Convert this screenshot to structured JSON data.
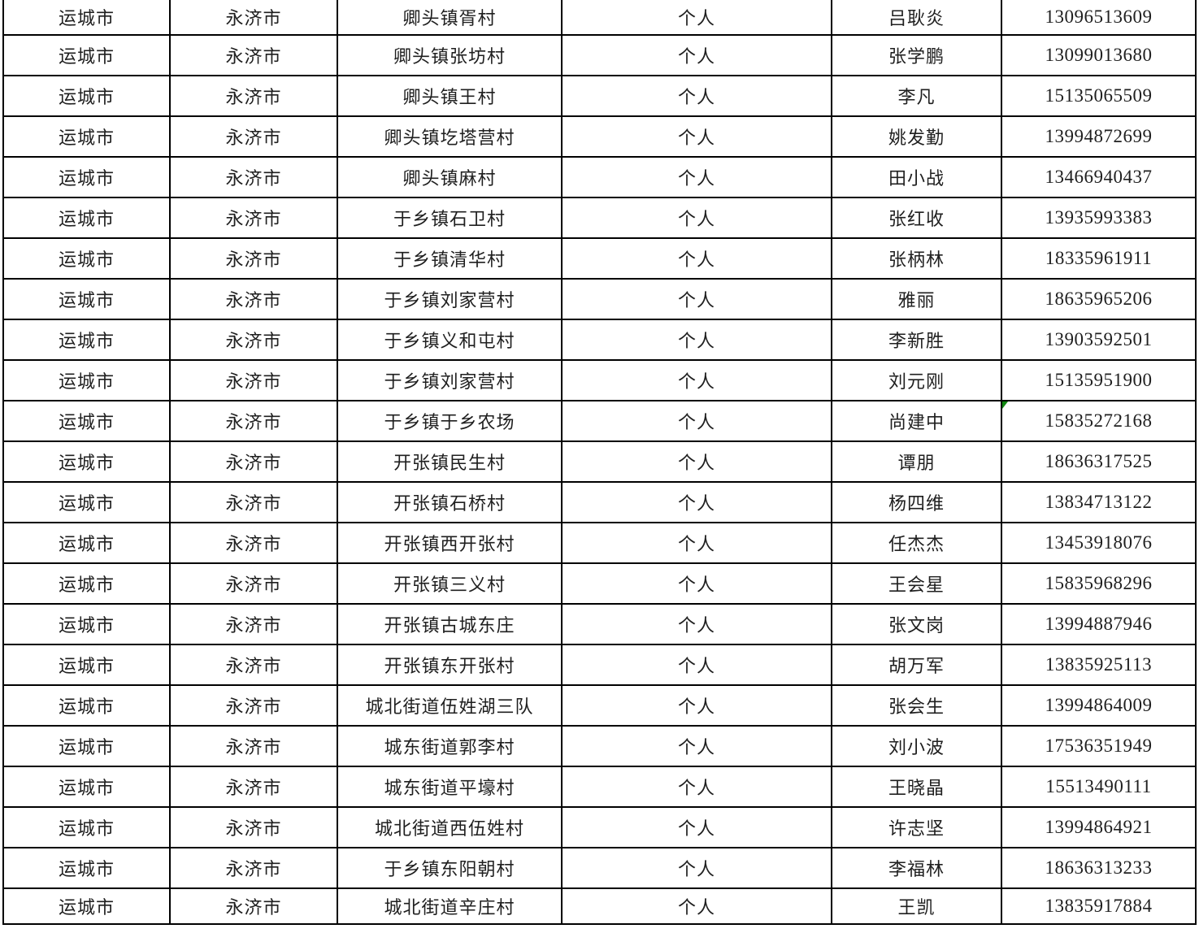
{
  "table": {
    "rows": [
      {
        "city": "运城市",
        "county": "永济市",
        "village": "卿头镇胥村",
        "type": "个人",
        "name": "吕耿炎",
        "phone": "13096513609"
      },
      {
        "city": "运城市",
        "county": "永济市",
        "village": "卿头镇张坊村",
        "type": "个人",
        "name": "张学鹏",
        "phone": "13099013680"
      },
      {
        "city": "运城市",
        "county": "永济市",
        "village": "卿头镇王村",
        "type": "个人",
        "name": "李凡",
        "phone": "15135065509"
      },
      {
        "city": "运城市",
        "county": "永济市",
        "village": "卿头镇圪塔营村",
        "type": "个人",
        "name": "姚发勤",
        "phone": "13994872699"
      },
      {
        "city": "运城市",
        "county": "永济市",
        "village": "卿头镇麻村",
        "type": "个人",
        "name": "田小战",
        "phone": "13466940437"
      },
      {
        "city": "运城市",
        "county": "永济市",
        "village": "于乡镇石卫村",
        "type": "个人",
        "name": "张红收",
        "phone": "13935993383"
      },
      {
        "city": "运城市",
        "county": "永济市",
        "village": "于乡镇清华村",
        "type": "个人",
        "name": "张柄林",
        "phone": "18335961911"
      },
      {
        "city": "运城市",
        "county": "永济市",
        "village": "于乡镇刘家营村",
        "type": "个人",
        "name": "雅丽",
        "phone": "18635965206"
      },
      {
        "city": "运城市",
        "county": "永济市",
        "village": "于乡镇义和屯村",
        "type": "个人",
        "name": "李新胜",
        "phone": "13903592501"
      },
      {
        "city": "运城市",
        "county": "永济市",
        "village": "于乡镇刘家营村",
        "type": "个人",
        "name": "刘元刚",
        "phone": "15135951900"
      },
      {
        "city": "运城市",
        "county": "永济市",
        "village": "于乡镇于乡农场",
        "type": "个人",
        "name": "尚建中",
        "phone": "15835272168"
      },
      {
        "city": "运城市",
        "county": "永济市",
        "village": "开张镇民生村",
        "type": "个人",
        "name": "谭朋",
        "phone": "18636317525"
      },
      {
        "city": "运城市",
        "county": "永济市",
        "village": "开张镇石桥村",
        "type": "个人",
        "name": "杨四维",
        "phone": "13834713122"
      },
      {
        "city": "运城市",
        "county": "永济市",
        "village": "开张镇西开张村",
        "type": "个人",
        "name": "任杰杰",
        "phone": "13453918076"
      },
      {
        "city": "运城市",
        "county": "永济市",
        "village": "开张镇三义村",
        "type": "个人",
        "name": "王会星",
        "phone": "15835968296"
      },
      {
        "city": "运城市",
        "county": "永济市",
        "village": "开张镇古城东庄",
        "type": "个人",
        "name": "张文岗",
        "phone": "13994887946"
      },
      {
        "city": "运城市",
        "county": "永济市",
        "village": "开张镇东开张村",
        "type": "个人",
        "name": "胡万军",
        "phone": "13835925113"
      },
      {
        "city": "运城市",
        "county": "永济市",
        "village": "城北街道伍姓湖三队",
        "type": "个人",
        "name": "张会生",
        "phone": "13994864009"
      },
      {
        "city": "运城市",
        "county": "永济市",
        "village": "城东街道郭李村",
        "type": "个人",
        "name": "刘小波",
        "phone": "17536351949"
      },
      {
        "city": "运城市",
        "county": "永济市",
        "village": "城东街道平壕村",
        "type": "个人",
        "name": "王晓晶",
        "phone": "15513490111"
      },
      {
        "city": "运城市",
        "county": "永济市",
        "village": "城北街道西伍姓村",
        "type": "个人",
        "name": "许志坚",
        "phone": "13994864921"
      },
      {
        "city": "运城市",
        "county": "永济市",
        "village": "于乡镇东阳朝村",
        "type": "个人",
        "name": "李福林",
        "phone": "18636313233"
      },
      {
        "city": "运城市",
        "county": "永济市",
        "village": "城北街道辛庄村",
        "type": "个人",
        "name": "王凯",
        "phone": "13835917884"
      }
    ]
  },
  "annotations": {
    "green_marker": {
      "row_index": 10,
      "column": "phone",
      "color": "#118811"
    }
  }
}
